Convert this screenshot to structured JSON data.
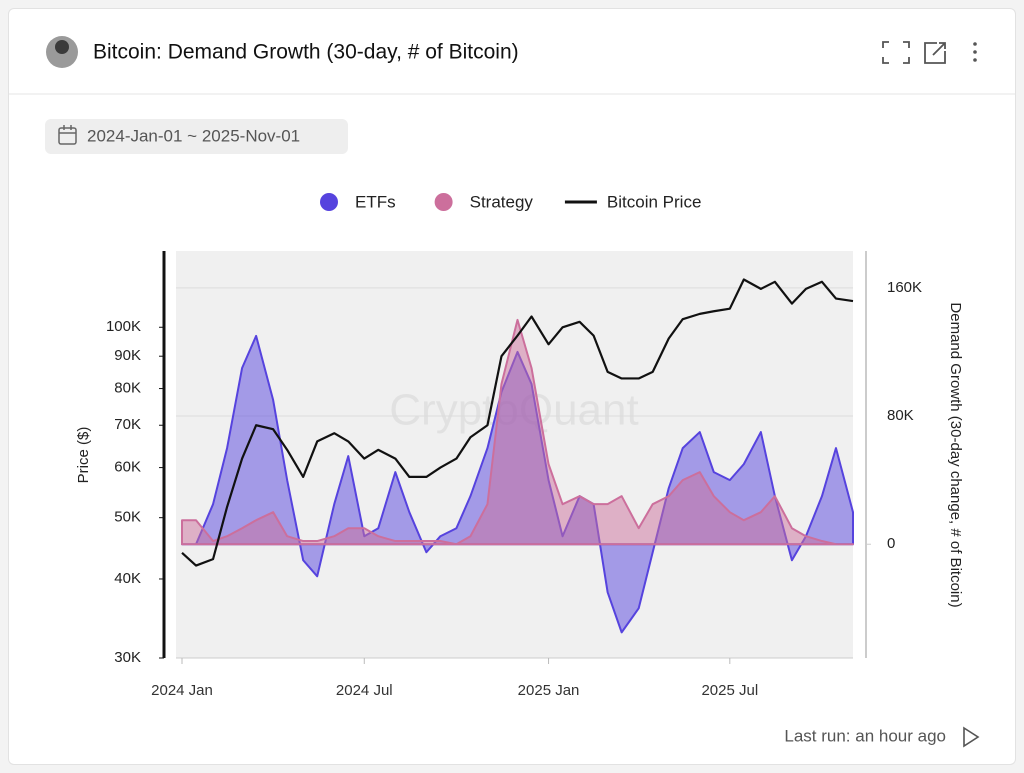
{
  "header": {
    "title": "Bitcoin: Demand Growth (30-day, # of Bitcoin)",
    "date_range": "2024-Jan-01 ~ 2025-Nov-01"
  },
  "footer": {
    "last_run": "Last run: an hour ago"
  },
  "chart_data": {
    "type": "area-line",
    "watermark": "CryptoQuant",
    "ylabel": "Price ($)",
    "y2label": "Demand Growth (30-day change, # of Bitcoin)",
    "yscale": "log",
    "grid": true,
    "legend": "top",
    "x": [
      "2024-01-01",
      "2024-01-15",
      "2024-02-01",
      "2024-02-15",
      "2024-03-01",
      "2024-03-15",
      "2024-04-01",
      "2024-04-15",
      "2024-05-01",
      "2024-05-15",
      "2024-06-01",
      "2024-06-15",
      "2024-07-01",
      "2024-07-15",
      "2024-08-01",
      "2024-08-15",
      "2024-09-01",
      "2024-09-15",
      "2024-10-01",
      "2024-10-15",
      "2024-11-01",
      "2024-11-15",
      "2024-12-01",
      "2024-12-15",
      "2025-01-01",
      "2025-01-15",
      "2025-02-01",
      "2025-02-15",
      "2025-03-01",
      "2025-03-15",
      "2025-04-01",
      "2025-04-15",
      "2025-05-01",
      "2025-05-15",
      "2025-06-01",
      "2025-06-15",
      "2025-07-01",
      "2025-07-15",
      "2025-08-01",
      "2025-08-15",
      "2025-09-01",
      "2025-09-15",
      "2025-10-01",
      "2025-10-15",
      "2025-11-01"
    ],
    "xlim": [
      "2023-12-26",
      "2025-11-01"
    ],
    "xticks": [
      {
        "value": "2024-01-01",
        "label": "2024 Jan"
      },
      {
        "value": "2024-07-01",
        "label": "2024 Jul"
      },
      {
        "value": "2025-01-01",
        "label": "2025 Jan"
      },
      {
        "value": "2025-07-01",
        "label": "2025 Jul"
      }
    ],
    "ylim": [
      30000,
      132000
    ],
    "yticks": [
      {
        "value": 30000,
        "label": "30K"
      },
      {
        "value": 40000,
        "label": "40K"
      },
      {
        "value": 50000,
        "label": "50K"
      },
      {
        "value": 60000,
        "label": "60K"
      },
      {
        "value": 70000,
        "label": "70K"
      },
      {
        "value": 80000,
        "label": "80K"
      },
      {
        "value": 90000,
        "label": "90K"
      },
      {
        "value": 100000,
        "label": "100K"
      }
    ],
    "y2lim": [
      -71000,
      183000
    ],
    "y2ticks": [
      0,
      {
        "value": 80000,
        "label": "80K"
      },
      {
        "value": 160000,
        "label": "160K"
      }
    ],
    "series": [
      {
        "name": "ETFs",
        "color": "#5643de",
        "axis": "y2",
        "values": [
          0,
          0,
          25000,
          60000,
          110000,
          130000,
          90000,
          40000,
          -10000,
          -20000,
          25000,
          55000,
          5000,
          10000,
          45000,
          20000,
          -5000,
          5000,
          10000,
          30000,
          60000,
          95000,
          120000,
          100000,
          40000,
          5000,
          30000,
          25000,
          -30000,
          -55000,
          -40000,
          -5000,
          35000,
          60000,
          70000,
          45000,
          40000,
          50000,
          70000,
          30000,
          -10000,
          5000,
          30000,
          60000,
          20000
        ]
      },
      {
        "name": "Strategy",
        "color": "#cc6f9c",
        "axis": "y2",
        "values": [
          15000,
          15000,
          2000,
          5000,
          10000,
          15000,
          20000,
          5000,
          2000,
          2000,
          5000,
          10000,
          10000,
          5000,
          2000,
          2000,
          2000,
          2000,
          0,
          5000,
          25000,
          100000,
          140000,
          110000,
          50000,
          25000,
          30000,
          25000,
          25000,
          30000,
          10000,
          25000,
          30000,
          40000,
          45000,
          30000,
          20000,
          15000,
          20000,
          30000,
          10000,
          5000,
          2000,
          0,
          0
        ]
      },
      {
        "name": "Bitcoin Price",
        "color": "#111111",
        "axis": "y",
        "values": [
          44000,
          42000,
          43000,
          52000,
          62000,
          70000,
          69000,
          64000,
          58000,
          66000,
          68000,
          66000,
          62000,
          64000,
          62000,
          58000,
          58000,
          60000,
          62000,
          67000,
          70000,
          90000,
          97000,
          104000,
          94000,
          100000,
          102000,
          97000,
          85000,
          83000,
          83000,
          85000,
          96000,
          103000,
          105000,
          106000,
          107000,
          119000,
          115000,
          118000,
          109000,
          115000,
          118000,
          111000,
          110000
        ]
      }
    ]
  }
}
